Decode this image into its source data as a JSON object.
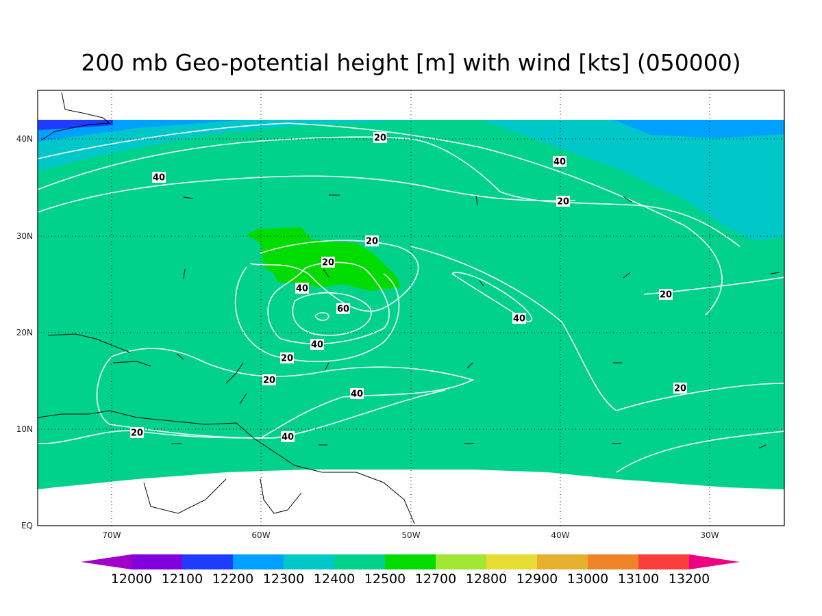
{
  "title": "200 mb Geo-potential height [m] with wind [kts] (050000)",
  "lon_labels": [
    "70W",
    "60W",
    "50W",
    "40W",
    "30W"
  ],
  "lat_labels": [
    "EQ",
    "10N",
    "20N",
    "30N",
    "40N"
  ],
  "contour_labels": [
    "20",
    "40",
    "40",
    "20",
    "20",
    "20",
    "40",
    "60",
    "40",
    "40",
    "20",
    "20",
    "20",
    "40",
    "20",
    "20",
    "40"
  ],
  "colorbar": {
    "levels": [
      "12000",
      "12100",
      "12200",
      "12300",
      "12400",
      "12500",
      "12700",
      "12800",
      "12900",
      "13000",
      "13100",
      "13200"
    ],
    "colors": [
      "#a000c8",
      "#8200dc",
      "#1e3cff",
      "#00a0ff",
      "#00c8c8",
      "#00d28c",
      "#00dc00",
      "#a0e632",
      "#e6dc32",
      "#e6af2d",
      "#f08228",
      "#fa3c3c",
      "#f00082"
    ]
  }
}
